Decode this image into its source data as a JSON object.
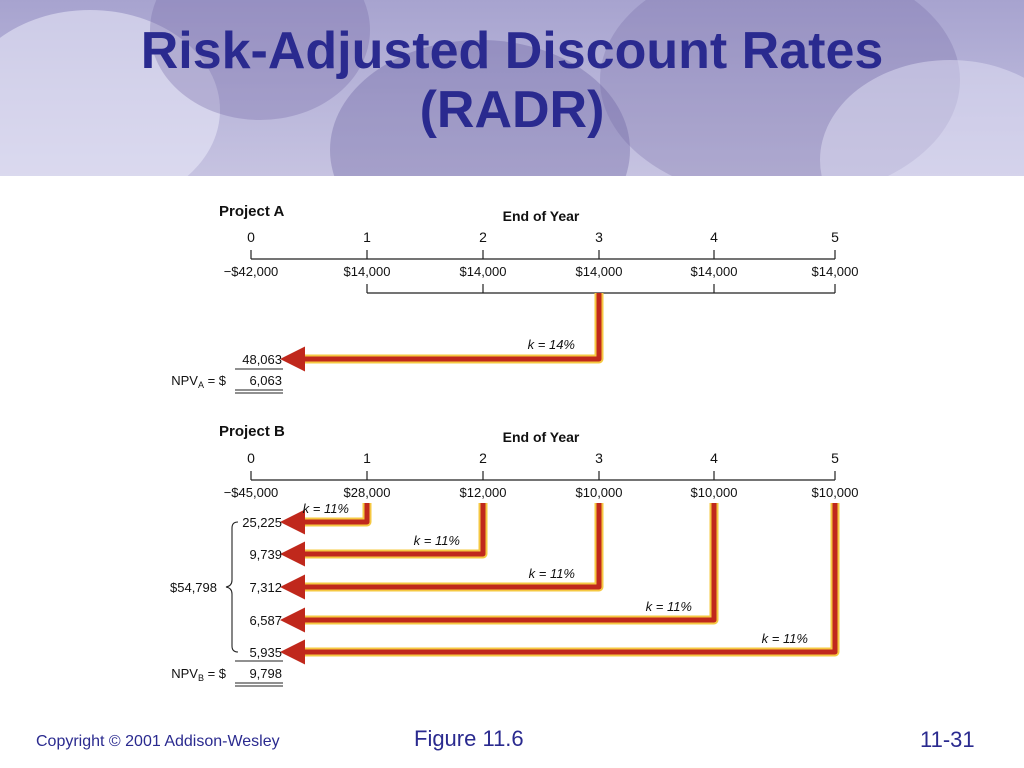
{
  "slide": {
    "title_line1": "Risk-Adjusted Discount Rates",
    "title_line2": "(RADR)"
  },
  "footer": {
    "copyright": "Copyright © 2001 Addison-Wesley",
    "figure": "Figure 11.6",
    "page": "11-31"
  },
  "figure": {
    "axis_label": "End of Year",
    "arrow_color": "#c0281c",
    "arrow_highlight": "#f5c842",
    "project_a": {
      "label": "Project A",
      "years": [
        "0",
        "1",
        "2",
        "3",
        "4",
        "5"
      ],
      "cash_flows": [
        "−$42,000",
        "$14,000",
        "$14,000",
        "$14,000",
        "$14,000",
        "$14,000"
      ],
      "rate_label": "k = 14%",
      "pv_total": "48,063",
      "npv_label": "NPV",
      "npv_sub": "A",
      "npv_eq": " = $",
      "npv_value": "6,063"
    },
    "project_b": {
      "label": "Project B",
      "years": [
        "0",
        "1",
        "2",
        "3",
        "4",
        "5"
      ],
      "cash_flows": [
        "−$45,000",
        "$28,000",
        "$12,000",
        "$10,000",
        "$10,000",
        "$10,000"
      ],
      "rate_labels": [
        "k = 11%",
        "k = 11%",
        "k = 11%",
        "k = 11%",
        "k = 11%"
      ],
      "present_values": [
        "25,225",
        "9,739",
        "7,312",
        "6,587",
        "5,935"
      ],
      "pv_total": "$54,798",
      "npv_label": "NPV",
      "npv_sub": "B",
      "npv_eq": " = $",
      "npv_value": "9,798"
    }
  }
}
